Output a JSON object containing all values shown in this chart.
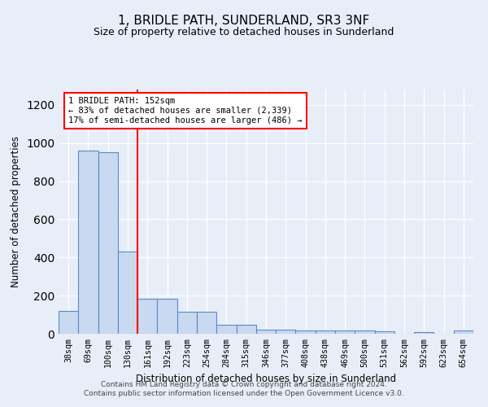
{
  "title": "1, BRIDLE PATH, SUNDERLAND, SR3 3NF",
  "subtitle": "Size of property relative to detached houses in Sunderland",
  "xlabel": "Distribution of detached houses by size in Sunderland",
  "ylabel": "Number of detached properties",
  "categories": [
    "38sqm",
    "69sqm",
    "100sqm",
    "130sqm",
    "161sqm",
    "192sqm",
    "223sqm",
    "254sqm",
    "284sqm",
    "315sqm",
    "346sqm",
    "377sqm",
    "408sqm",
    "438sqm",
    "469sqm",
    "500sqm",
    "531sqm",
    "562sqm",
    "592sqm",
    "623sqm",
    "654sqm"
  ],
  "values": [
    120,
    960,
    950,
    430,
    185,
    185,
    115,
    115,
    45,
    45,
    20,
    20,
    15,
    15,
    15,
    15,
    12,
    0,
    10,
    0,
    15
  ],
  "bar_color": "#c9d9f0",
  "bar_edge_color": "#5a8ac6",
  "vline_x": 3.5,
  "vline_color": "red",
  "annotation_text": "1 BRIDLE PATH: 152sqm\n← 83% of detached houses are smaller (2,339)\n17% of semi-detached houses are larger (486) →",
  "annotation_box_color": "white",
  "annotation_box_edge_color": "red",
  "ylim": [
    0,
    1280
  ],
  "yticks": [
    0,
    200,
    400,
    600,
    800,
    1000,
    1200
  ],
  "footer": "Contains HM Land Registry data © Crown copyright and database right 2024.\nContains public sector information licensed under the Open Government Licence v3.0.",
  "bg_color": "#e8eef8",
  "plot_bg_color": "#e8eef8",
  "title_fontsize": 11,
  "subtitle_fontsize": 9
}
